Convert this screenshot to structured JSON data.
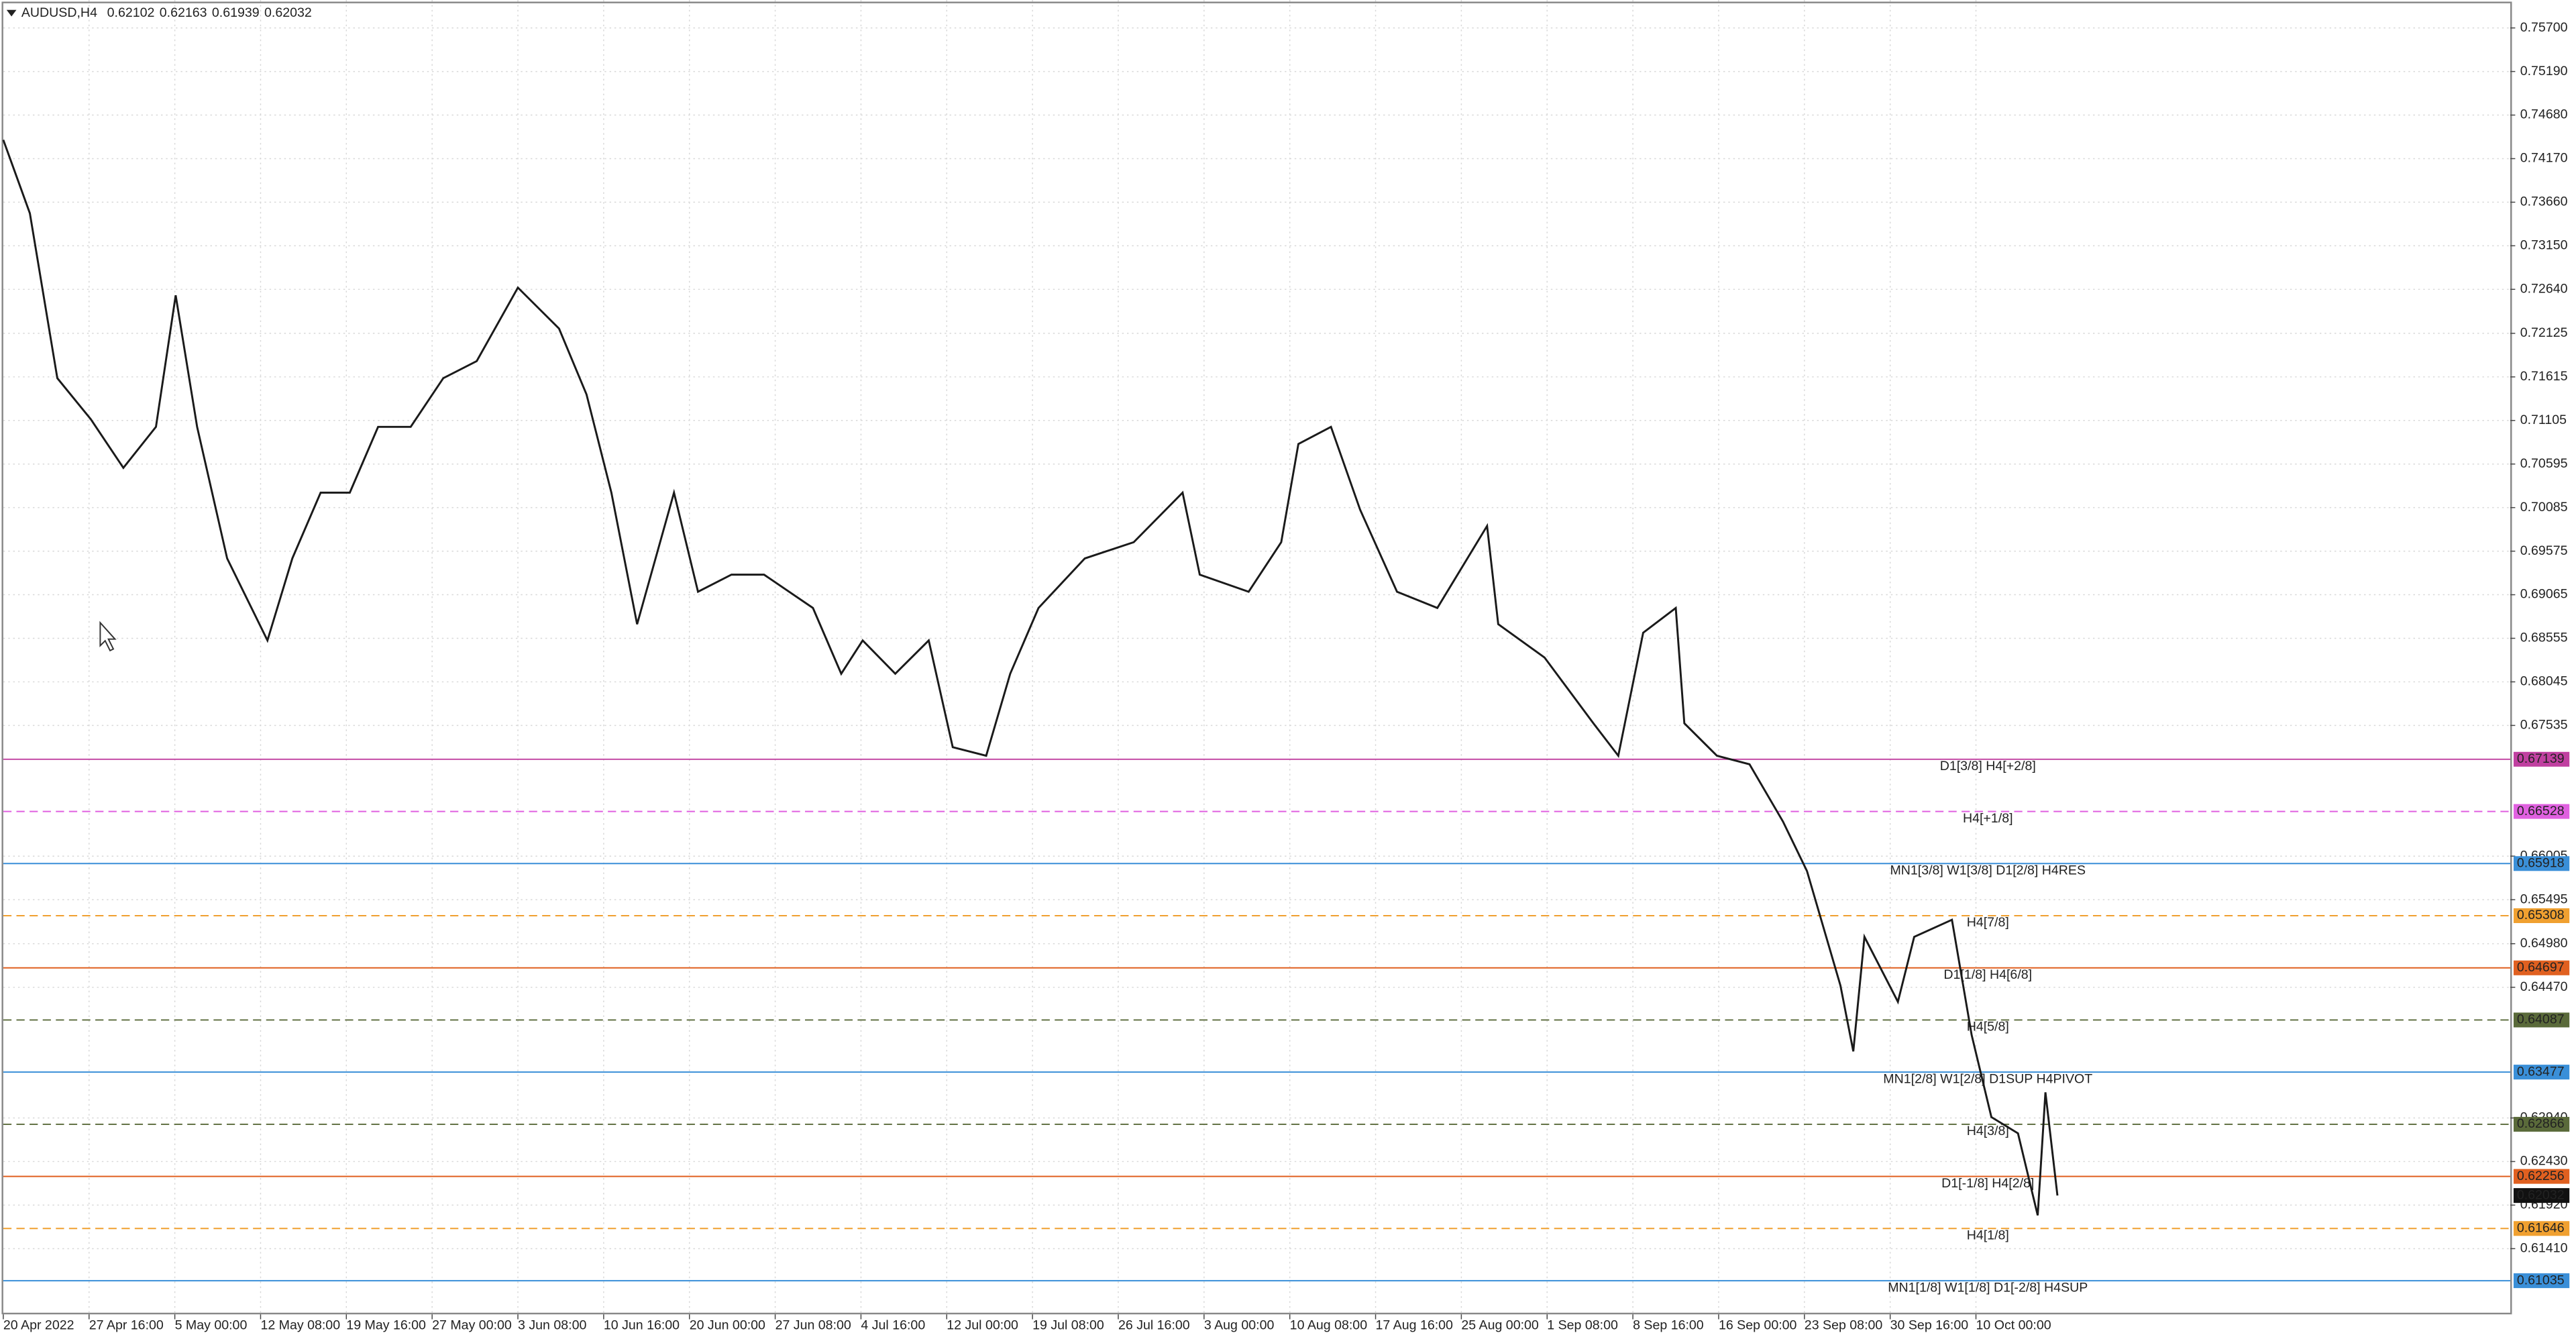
{
  "chart_data": {
    "type": "line",
    "title": "AUDUSD,H4",
    "ohlc": [
      0.62102,
      0.62163,
      0.61939,
      0.62032
    ],
    "ylim": [
      0.60641,
      0.76027
    ],
    "yticks": [
      {
        "value": 0.757,
        "label": "0.75700"
      },
      {
        "value": 0.7519,
        "label": "0.75190"
      },
      {
        "value": 0.7468,
        "label": "0.74680"
      },
      {
        "value": 0.7417,
        "label": "0.74170"
      },
      {
        "value": 0.7366,
        "label": "0.73660"
      },
      {
        "value": 0.7315,
        "label": "0.73150"
      },
      {
        "value": 0.7264,
        "label": "0.72640"
      },
      0.72125,
      0.71615,
      0.71105,
      0.70595,
      0.70085,
      0.69575,
      0.69065,
      0.68555,
      0.68045,
      0.67535,
      0.66005,
      0.65495,
      {
        "value": 0.6498,
        "label": "0.64980"
      },
      {
        "value": 0.6447,
        "label": "0.64470"
      },
      {
        "value": 0.6294,
        "label": "0.62940"
      },
      {
        "value": 0.6243,
        "label": "0.62430"
      },
      {
        "value": 0.6192,
        "label": "0.61920"
      },
      {
        "value": 0.6141,
        "label": "0.61410"
      }
    ],
    "xlim": [
      0,
      29.23
    ],
    "xticks": [
      {
        "value": 0,
        "label": "20 Apr 2022"
      },
      {
        "value": 1,
        "label": "27 Apr 16:00"
      },
      {
        "value": 2,
        "label": "5 May 00:00"
      },
      {
        "value": 3,
        "label": "12 May 08:00"
      },
      {
        "value": 4,
        "label": "19 May 16:00"
      },
      {
        "value": 5,
        "label": "27 May 00:00"
      },
      {
        "value": 6,
        "label": "3 Jun 08:00"
      },
      {
        "value": 7,
        "label": "10 Jun 16:00"
      },
      {
        "value": 8,
        "label": "20 Jun 00:00"
      },
      {
        "value": 9,
        "label": "27 Jun 08:00"
      },
      {
        "value": 10,
        "label": "4 Jul 16:00"
      },
      {
        "value": 11,
        "label": "12 Jul 00:00"
      },
      {
        "value": 12,
        "label": "19 Jul 08:00"
      },
      {
        "value": 13,
        "label": "26 Jul 16:00"
      },
      {
        "value": 14,
        "label": "3 Aug 00:00"
      },
      {
        "value": 15,
        "label": "10 Aug 08:00"
      },
      {
        "value": 16,
        "label": "17 Aug 16:00"
      },
      {
        "value": 17,
        "label": "25 Aug 00:00"
      },
      {
        "value": 18,
        "label": "1 Sep 08:00"
      },
      {
        "value": 19,
        "label": "8 Sep 16:00"
      },
      {
        "value": 20,
        "label": "16 Sep 00:00"
      },
      {
        "value": 21,
        "label": "23 Sep 08:00"
      },
      {
        "value": 22,
        "label": "30 Sep 16:00"
      },
      {
        "value": 23,
        "label": "10 Oct 00:00"
      }
    ],
    "grid": true,
    "series": [
      {
        "color": "#1a1a1a",
        "x": [
          0,
          0.31,
          0.63,
          1.02,
          1.4,
          1.78,
          2.01,
          2.26,
          2.61,
          3.08,
          3.37,
          3.7,
          4.04,
          4.37,
          4.75,
          5.13,
          5.52,
          6.0,
          6.48,
          6.8,
          7.09,
          7.39,
          7.82,
          8.1,
          8.49,
          8.87,
          9.44,
          9.77,
          10.02,
          10.4,
          10.79,
          11.07,
          11.46,
          11.74,
          12.07,
          12.61,
          13.18,
          13.75,
          13.95,
          14.52,
          14.9,
          15.1,
          15.48,
          15.82,
          16.25,
          16.72,
          17.3,
          17.43,
          17.97,
          18.54,
          18.83,
          19.12,
          19.5,
          19.6,
          19.98,
          20.36,
          20.75,
          21.03,
          21.42,
          21.57,
          21.7,
          22.09,
          22.28,
          22.72,
          22.95,
          23.18,
          23.49,
          23.72,
          23.81,
          23.95
        ],
        "values": [
          0.7439,
          0.7353,
          0.716,
          0.7112,
          0.7055,
          0.7103,
          0.7257,
          0.7103,
          0.6949,
          0.6853,
          0.6949,
          0.7026,
          0.7026,
          0.7103,
          0.7103,
          0.716,
          0.718,
          0.7266,
          0.7218,
          0.7141,
          0.7026,
          0.6872,
          0.7026,
          0.691,
          0.693,
          0.693,
          0.6891,
          0.6814,
          0.6853,
          0.6814,
          0.6853,
          0.6728,
          0.6718,
          0.6814,
          0.6891,
          0.6949,
          0.6968,
          0.7026,
          0.693,
          0.691,
          0.6968,
          0.7083,
          0.7103,
          0.7006,
          0.691,
          0.6891,
          0.6987,
          0.6872,
          0.6833,
          0.6756,
          0.6718,
          0.6862,
          0.6891,
          0.6756,
          0.6718,
          0.6708,
          0.6641,
          0.6583,
          0.6449,
          0.6372,
          0.6506,
          0.643,
          0.6506,
          0.6526,
          0.6391,
          0.6295,
          0.6276,
          0.618,
          0.6324,
          0.62032
        ]
      }
    ],
    "levels": [
      {
        "value": 0.67139,
        "label": "D1[3/8] H4[+2/8]",
        "color": "#c040a0",
        "dashed": false
      },
      {
        "value": 0.66528,
        "label": "H4[+1/8]",
        "color": "#e060e0",
        "dashed": true
      },
      {
        "value": 0.65918,
        "label": "MN1[3/8] W1[3/8] D1[2/8] H4RES",
        "color": "#3a8fd8",
        "dashed": false
      },
      {
        "value": 0.65308,
        "label": "H4[7/8]",
        "color": "#f0a030",
        "dashed": true
      },
      {
        "value": 0.64697,
        "label": "D1[1/8] H4[6/8]",
        "color": "#e06020",
        "dashed": false
      },
      {
        "value": 0.64087,
        "label": "H4[5/8]",
        "color": "#5a6a3a",
        "dashed": true
      },
      {
        "value": 0.63477,
        "label": "MN1[2/8] W1[2/8] D1SUP H4PIVOT",
        "color": "#3a8fd8",
        "dashed": false
      },
      {
        "value": 0.62866,
        "label": "H4[3/8]",
        "color": "#5a6a3a",
        "dashed": true
      },
      {
        "value": 0.62256,
        "label": "D1[-1/8] H4[2/8]",
        "color": "#e06020",
        "dashed": false
      },
      {
        "value": 0.61646,
        "label": "H4[1/8]",
        "color": "#f0a030",
        "dashed": true
      },
      {
        "value": 0.61035,
        "label": "MN1[1/8] W1[1/8] D1[-2/8] H4SUP",
        "color": "#3a8fd8",
        "dashed": false
      }
    ]
  }
}
